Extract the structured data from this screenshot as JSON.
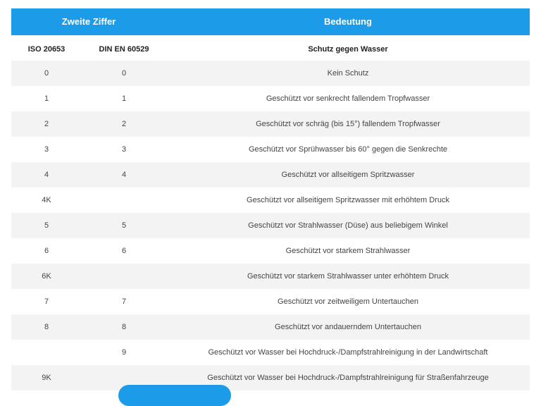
{
  "table": {
    "header": [
      "Zweite Ziffer",
      "Bedeutung"
    ],
    "subheader": [
      "ISO 20653",
      "DIN EN 60529",
      "Schutz gegen Wasser"
    ],
    "rows": [
      [
        "0",
        "0",
        "Kein Schutz"
      ],
      [
        "1",
        "1",
        "Geschützt vor senkrecht fallendem Tropfwasser"
      ],
      [
        "2",
        "2",
        "Geschützt vor schräg (bis 15°) fallendem Tropfwasser"
      ],
      [
        "3",
        "3",
        "Geschützt vor Sprühwasser bis 60° gegen die Senkrechte"
      ],
      [
        "4",
        "4",
        "Geschützt vor allseitigem Spritzwasser"
      ],
      [
        "4K",
        null,
        "Geschützt vor allseitigem Spritzwasser mit erhöhtem Druck"
      ],
      [
        "5",
        "5",
        "Geschützt vor Strahlwasser (Düse) aus beliebigem Winkel"
      ],
      [
        "6",
        "6",
        "Geschützt vor starkem Strahlwasser"
      ],
      [
        "6K",
        null,
        "Geschützt vor starkem Strahlwasser unter erhöhtem Druck"
      ],
      [
        "7",
        "7",
        "Geschützt vor zeitweiligem Untertauchen"
      ],
      [
        "8",
        "8",
        "Geschützt vor andauerndem Untertauchen"
      ],
      [
        null,
        "9",
        "Geschützt vor Wasser bei Hochdruck-/Dampfstrahlreinigung in der Landwirtschaft"
      ],
      [
        "9K",
        null,
        "Geschützt vor Wasser bei Hochdruck-/Dampfstrahlreinigung für Straßenfahrzeuge"
      ]
    ]
  }
}
